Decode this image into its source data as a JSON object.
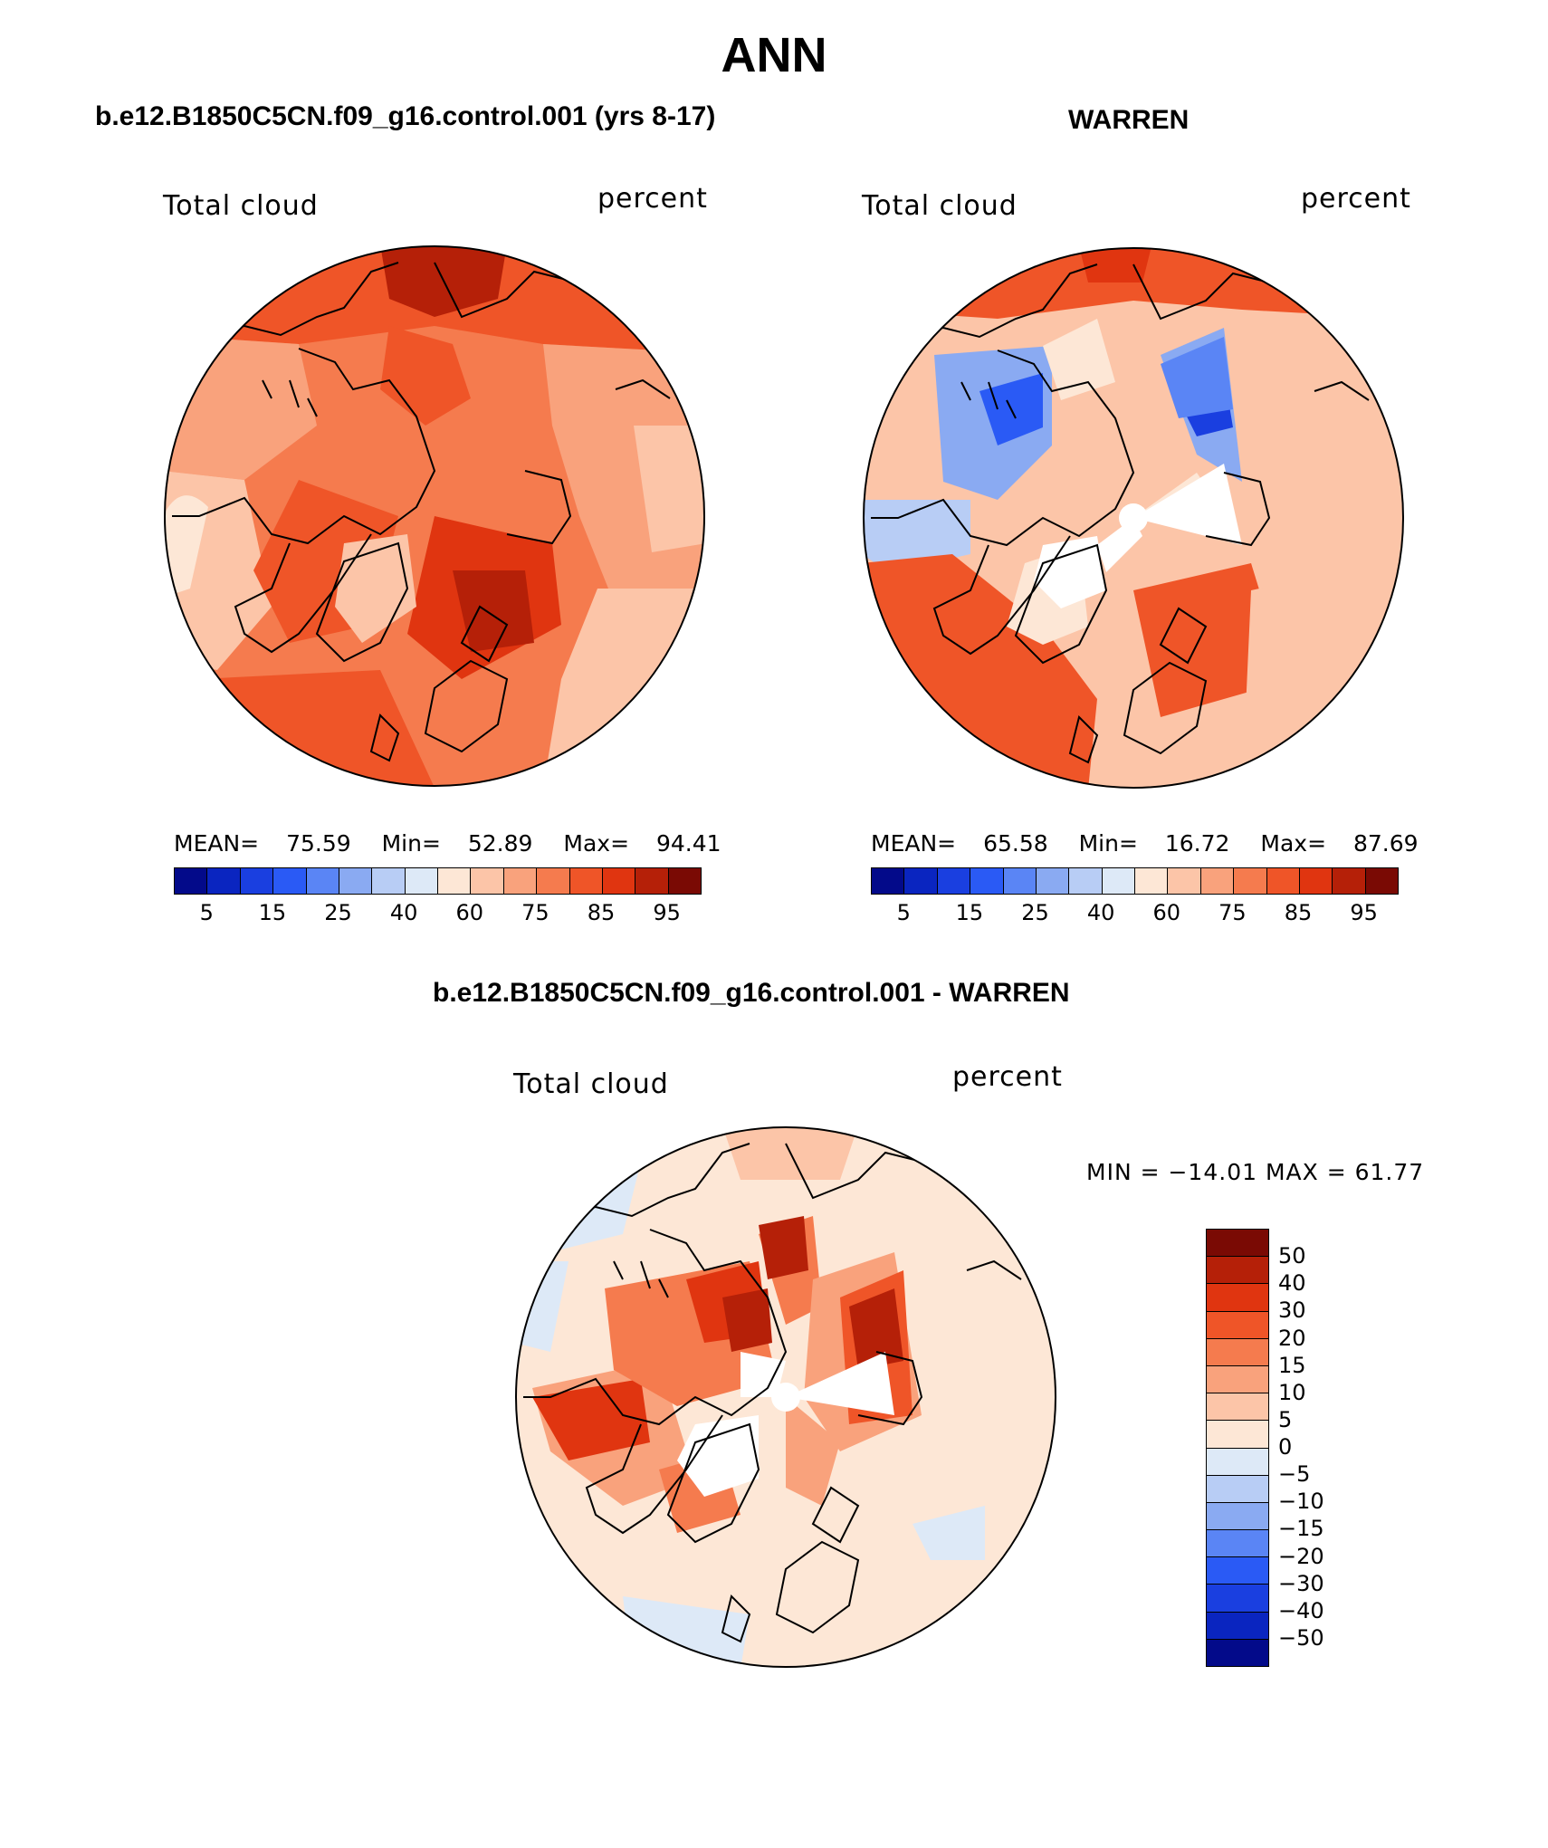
{
  "title": "ANN",
  "panels": {
    "model": {
      "title": "b.e12.B1850C5CN.f09_g16.control.001 (yrs 8-17)",
      "variable": "Total cloud",
      "units": "percent",
      "mean_label": "MEAN=",
      "mean": "75.59",
      "min_label": "Min=",
      "min": "52.89",
      "max_label": "Max=",
      "max": "94.41"
    },
    "obs": {
      "title": "WARREN",
      "variable": "Total cloud",
      "units": "percent",
      "mean_label": "MEAN=",
      "mean": "65.58",
      "min_label": "Min=",
      "min": "16.72",
      "max_label": "Max=",
      "max": "87.69"
    },
    "diff": {
      "title": "b.e12.B1850C5CN.f09_g16.control.001 - WARREN",
      "variable": "Total cloud",
      "units": "percent",
      "minmax_text": "MIN = −14.01 MAX =   61.77"
    }
  },
  "colorbar_abs": {
    "ticks": [
      "5",
      "15",
      "25",
      "40",
      "60",
      "75",
      "85",
      "95"
    ],
    "colors": [
      "#030a8a",
      "#0a25c0",
      "#1a3fe0",
      "#2a5af5",
      "#5a85f5",
      "#8aaaf2",
      "#b8cdf5",
      "#dde9f7",
      "#fde7d6",
      "#fcc5a8",
      "#f9a27c",
      "#f57b4e",
      "#ef5528",
      "#e03510",
      "#b52008",
      "#7a0a04"
    ]
  },
  "colorbar_diff": {
    "ticks": [
      "50",
      "40",
      "30",
      "20",
      "15",
      "10",
      "5",
      "0",
      "−5",
      "−10",
      "−15",
      "−20",
      "−30",
      "−40",
      "−50"
    ],
    "colors": [
      "#7a0a04",
      "#b52008",
      "#e03510",
      "#ef5528",
      "#f57b4e",
      "#f9a27c",
      "#fcc5a8",
      "#fde7d6",
      "#dde9f7",
      "#b8cdf5",
      "#8aaaf2",
      "#5a85f5",
      "#2a5af5",
      "#1a3fe0",
      "#0a25c0",
      "#030a8a"
    ]
  }
}
